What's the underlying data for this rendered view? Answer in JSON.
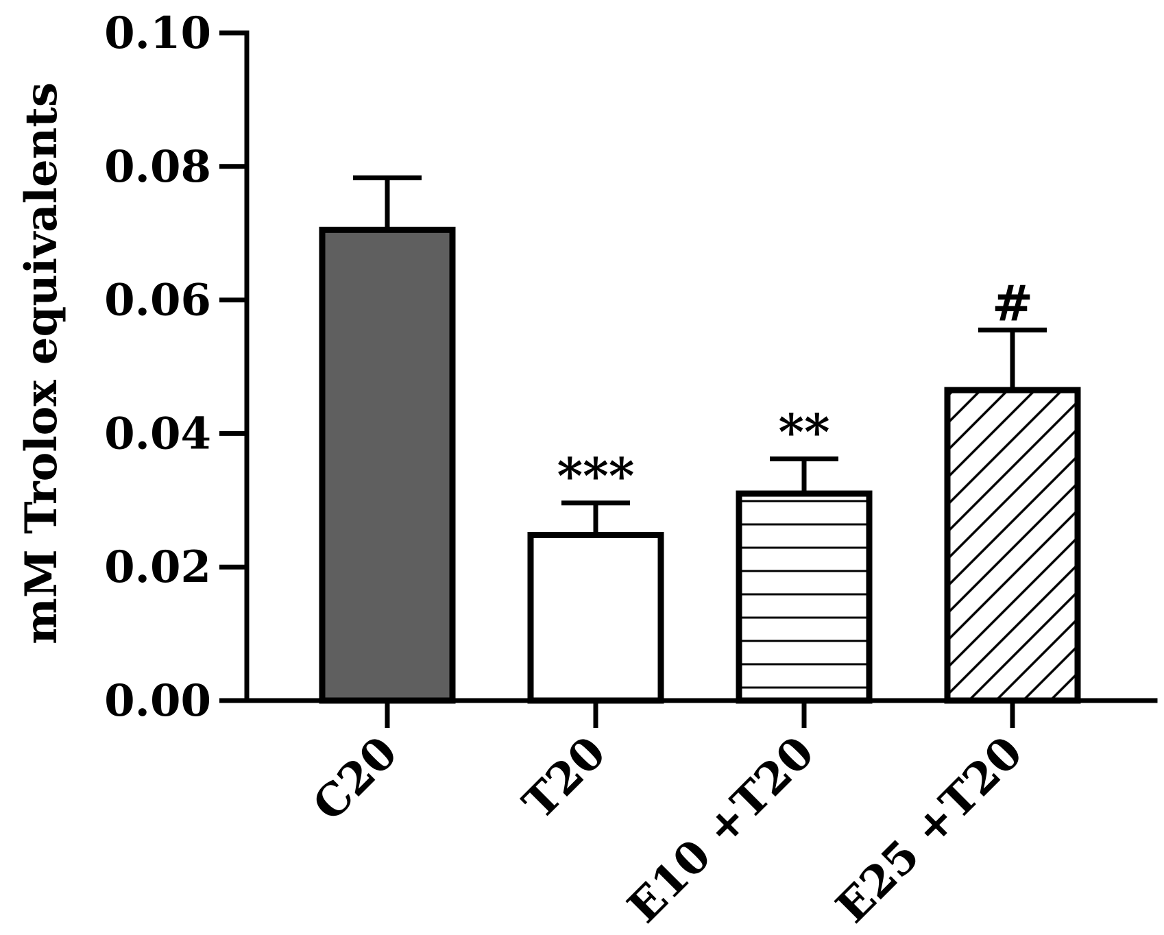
{
  "chart_data": {
    "type": "bar",
    "ylabel": "mM Trolox equivalents",
    "ylim": [
      0,
      0.1
    ],
    "yticks": [
      "0.00",
      "0.02",
      "0.04",
      "0.06",
      "0.08",
      "0.10"
    ],
    "categories": [
      "C20",
      "T20",
      "E10 +T20",
      "E25 +T20"
    ],
    "values": [
      0.0705,
      0.0248,
      0.031,
      0.0465
    ],
    "errors": [
      0.0078,
      0.0048,
      0.0052,
      0.009
    ],
    "annotations": [
      "",
      "***",
      "**",
      "#"
    ],
    "fills": [
      "solid-dark",
      "white",
      "horizontal-lines",
      "diagonal-hatch"
    ],
    "colors": {
      "dark_fill": "#5f5f5f",
      "line": "#000000",
      "background": "#ffffff"
    },
    "grid": false,
    "legend": "none"
  }
}
